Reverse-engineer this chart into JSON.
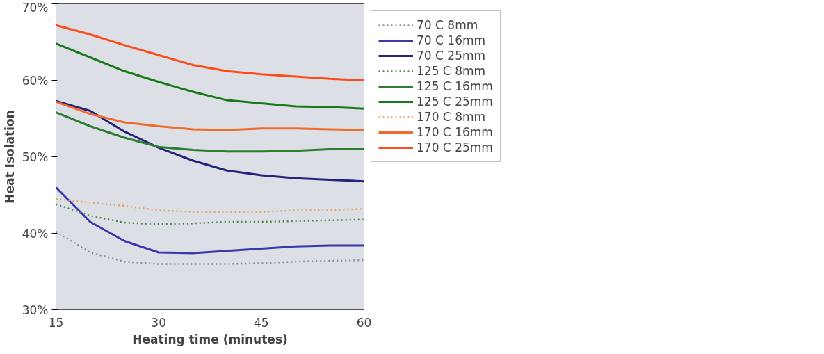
{
  "chart_data": {
    "type": "line",
    "xlabel": "Heating time (minutes)",
    "ylabel": "Heat Isolation",
    "x": [
      15,
      20,
      25,
      30,
      35,
      40,
      45,
      50,
      55,
      60
    ],
    "xlim": [
      15,
      60
    ],
    "xticks": [
      15,
      30,
      45,
      60
    ],
    "ylim": [
      30,
      70
    ],
    "yticks": [
      {
        "value": 30,
        "label": "30%"
      },
      {
        "value": 40,
        "label": "40%"
      },
      {
        "value": 50,
        "label": "50%"
      },
      {
        "value": 60,
        "label": "60%"
      },
      {
        "value": 70,
        "label": "70%"
      }
    ],
    "grid": false,
    "legend": "right",
    "marker": "none",
    "series": [
      {
        "name": "70 C 8mm",
        "color": "#8a8aa8",
        "line_style": "dotted",
        "values": [
          40.2,
          37.5,
          36.3,
          36.0,
          36.0,
          36.0,
          36.1,
          36.3,
          36.4,
          36.5
        ]
      },
      {
        "name": "70 C 16mm",
        "color": "#3a3aa8",
        "line_style": "solid",
        "values": [
          46.0,
          41.5,
          39.0,
          37.5,
          37.4,
          37.7,
          38.0,
          38.3,
          38.4,
          38.4
        ]
      },
      {
        "name": "70 C 25mm",
        "color": "#23237a",
        "line_style": "solid",
        "values": [
          57.3,
          56.0,
          53.3,
          51.2,
          49.5,
          48.2,
          47.6,
          47.2,
          47.0,
          46.8
        ]
      },
      {
        "name": "125 C 8mm",
        "color": "#4a8a4a",
        "line_style": "dotted",
        "values": [
          43.8,
          42.3,
          41.4,
          41.2,
          41.3,
          41.5,
          41.5,
          41.6,
          41.7,
          41.8
        ]
      },
      {
        "name": "125 C 16mm",
        "color": "#2e7d32",
        "line_style": "solid",
        "values": [
          55.8,
          54.0,
          52.5,
          51.3,
          50.9,
          50.7,
          50.7,
          50.8,
          51.0,
          51.0
        ]
      },
      {
        "name": "125 C 25mm",
        "color": "#1a7a1a",
        "line_style": "solid",
        "values": [
          64.8,
          63.0,
          61.2,
          59.8,
          58.5,
          57.4,
          57.0,
          56.6,
          56.5,
          56.3
        ]
      },
      {
        "name": "170 C 8mm",
        "color": "#f0a060",
        "line_style": "dotted",
        "values": [
          44.5,
          44.0,
          43.6,
          43.0,
          42.8,
          42.8,
          42.8,
          43.0,
          43.0,
          43.2
        ]
      },
      {
        "name": "170 C 16mm",
        "color": "#f26a2a",
        "line_style": "solid",
        "values": [
          57.2,
          55.6,
          54.5,
          54.0,
          53.6,
          53.5,
          53.7,
          53.7,
          53.6,
          53.5
        ]
      },
      {
        "name": "170 C 25mm",
        "color": "#ff4a1a",
        "line_style": "solid",
        "values": [
          67.2,
          66.0,
          64.6,
          63.3,
          62.0,
          61.2,
          60.8,
          60.5,
          60.2,
          60.0
        ]
      }
    ]
  }
}
